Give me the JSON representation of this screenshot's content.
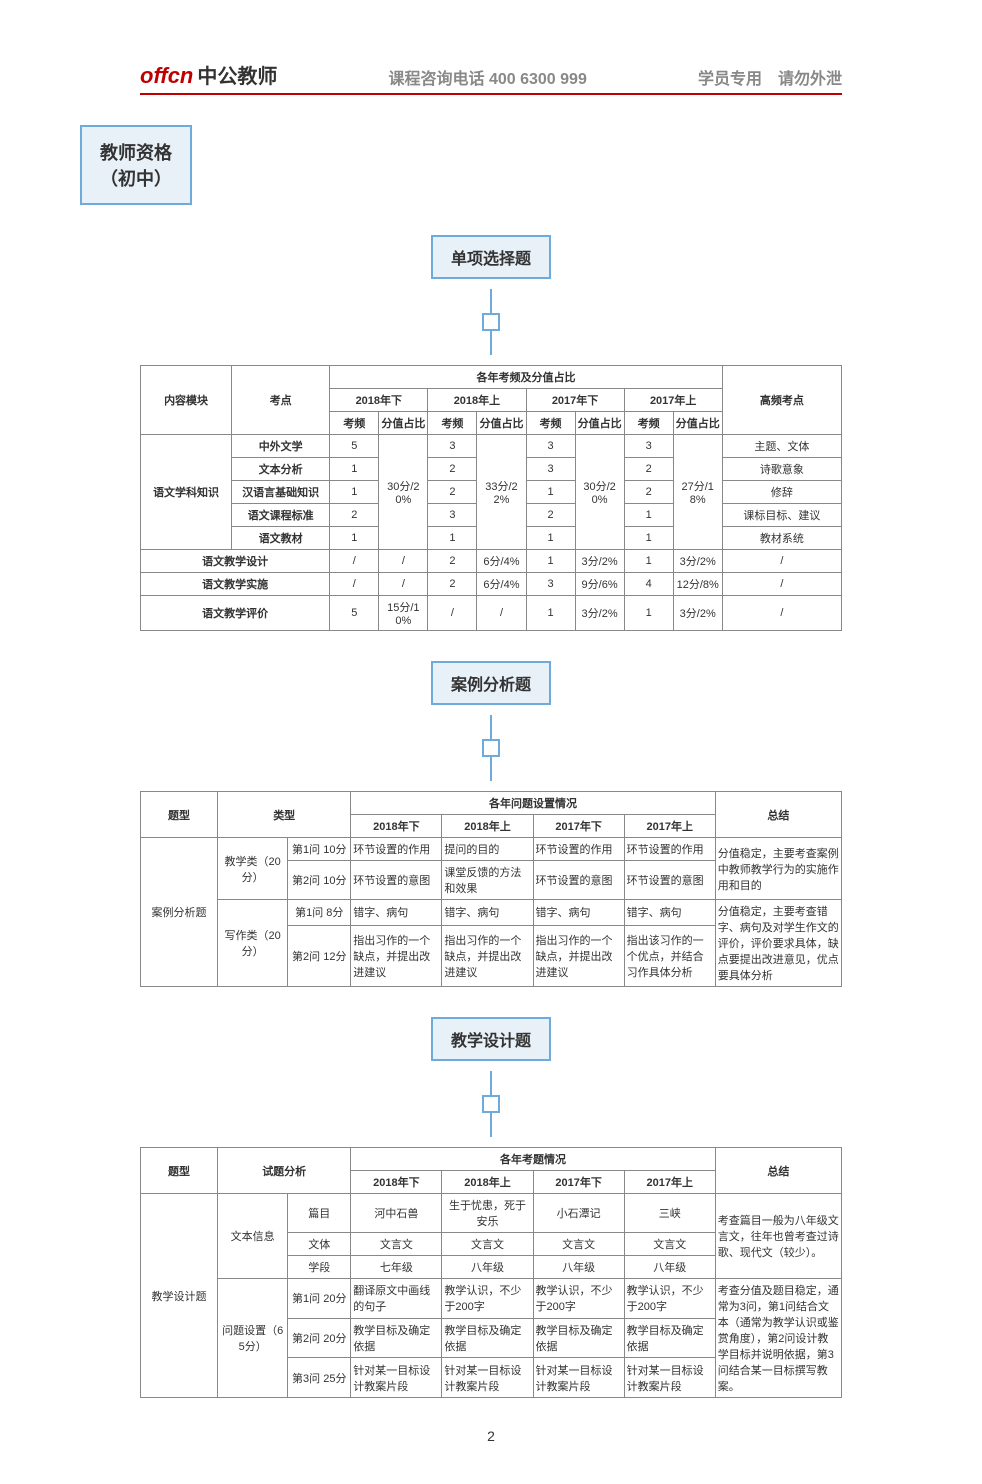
{
  "header": {
    "logo_main": "offcn",
    "logo_sub": "中公教师",
    "center": "课程咨询电话 400 6300 999",
    "right": "学员专用　请勿外泄"
  },
  "root_box": "教师资格\n（初中）",
  "section1": {
    "label": "单项选择题",
    "super_header": "各年考频及分值占比",
    "col_module": "内容模块",
    "col_point": "考点",
    "years": [
      "2018年下",
      "2018年上",
      "2017年下",
      "2017年上"
    ],
    "sub_freq": "考频",
    "sub_ratio": "分值占比",
    "col_hot": "高频考点",
    "group1_name": "语文学科知识",
    "group1_rows": [
      {
        "pt": "中外文学",
        "f": [
          "5",
          "3",
          "3",
          "3"
        ],
        "hot": "主题、文体"
      },
      {
        "pt": "文本分析",
        "f": [
          "1",
          "2",
          "3",
          "2"
        ],
        "hot": "诗歌意象"
      },
      {
        "pt": "汉语言基础知识",
        "f": [
          "1",
          "2",
          "1",
          "2"
        ],
        "hot": "修辞"
      },
      {
        "pt": "语文课程标准",
        "f": [
          "2",
          "3",
          "2",
          "1"
        ],
        "hot": "课标目标、建议"
      },
      {
        "pt": "语文教材",
        "f": [
          "1",
          "1",
          "1",
          "1"
        ],
        "hot": "教材系统"
      }
    ],
    "group1_ratios": [
      "30分/20%",
      "33分/22%",
      "30分/20%",
      "27分/18%"
    ],
    "plain_rows": [
      {
        "pt": "语文教学设计",
        "f": [
          "/",
          "/",
          "2",
          "6分/4%",
          "1",
          "3分/2%",
          "1",
          "3分/2%"
        ],
        "hot": "/"
      },
      {
        "pt": "语文教学实施",
        "f": [
          "/",
          "/",
          "2",
          "6分/4%",
          "3",
          "9分/6%",
          "4",
          "12分/8%"
        ],
        "hot": "/"
      },
      {
        "pt": "语文教学评价",
        "f": [
          "5",
          "15分/10%",
          "/",
          "/",
          "1",
          "3分/2%",
          "1",
          "3分/2%"
        ],
        "hot": "/"
      }
    ]
  },
  "section2": {
    "label": "案例分析题",
    "super_header": "各年问题设置情况",
    "col_type": "题型",
    "col_class": "类型",
    "years": [
      "2018年下",
      "2018年上",
      "2017年下",
      "2017年上"
    ],
    "col_sum": "总结",
    "rowname": "案例分析题",
    "groups": [
      {
        "name": "教学类（20分）",
        "rows": [
          {
            "q": "第1问 10分",
            "c": [
              "环节设置的作用",
              "提问的目的",
              "环节设置的作用",
              "环节设置的作用"
            ]
          },
          {
            "q": "第2问 10分",
            "c": [
              "环节设置的意图",
              "课堂反馈的方法和效果",
              "环节设置的意图",
              "环节设置的意图"
            ]
          }
        ],
        "sum": "分值稳定，主要考查案例中教师教学行为的实施作用和目的"
      },
      {
        "name": "写作类（20分）",
        "rows": [
          {
            "q": "第1问 8分",
            "c": [
              "错字、病句",
              "错字、病句",
              "错字、病句",
              "错字、病句"
            ]
          },
          {
            "q": "第2问 12分",
            "c": [
              "指出习作的一个缺点，并提出改进建议",
              "指出习作的一个缺点，并提出改进建议",
              "指出习作的一个缺点，并提出改进建议",
              "指出该习作的一个优点，并结合习作具体分析"
            ]
          }
        ],
        "sum": "分值稳定，主要考查错字、病句及对学生作文的评价，评价要求具体，缺点要提出改进意见，优点要具体分析"
      }
    ]
  },
  "section3": {
    "label": "教学设计题",
    "super_header": "各年考题情况",
    "col_type": "题型",
    "col_ana": "试题分析",
    "years": [
      "2018年下",
      "2018年上",
      "2017年下",
      "2017年上"
    ],
    "col_sum": "总结",
    "rowname": "教学设计题",
    "text_info_name": "文本信息",
    "text_info_rows": [
      {
        "k": "篇目",
        "c": [
          "河中石兽",
          "生于忧患，死于安乐",
          "小石潭记",
          "三峡"
        ]
      },
      {
        "k": "文体",
        "c": [
          "文言文",
          "文言文",
          "文言文",
          "文言文"
        ]
      },
      {
        "k": "学段",
        "c": [
          "七年级",
          "八年级",
          "八年级",
          "八年级"
        ]
      }
    ],
    "text_info_sum": "考查篇目一般为八年级文言文，往年也曾考查过诗歌、现代文（较少）。",
    "q_set_name": "问题设置（65分）",
    "q_rows": [
      {
        "k": "第1问 20分",
        "c": [
          "翻译原文中画线的句子",
          "教学认识，不少于200字",
          "教学认识，不少于200字",
          "教学认识，不少于200字"
        ]
      },
      {
        "k": "第2问 20分",
        "c": [
          "教学目标及确定依据",
          "教学目标及确定依据",
          "教学目标及确定依据",
          "教学目标及确定依据"
        ]
      },
      {
        "k": "第3问 25分",
        "c": [
          "针对某一目标设计教案片段",
          "针对某一目标设计教案片段",
          "针对某一目标设计教案片段",
          "针对某一目标设计教案片段"
        ]
      }
    ],
    "q_sum": "考查分值及题目稳定，通常为3问，第1问结合文本（通常为教学认识或鉴赏角度），第2问设计教学目标并说明依据，第3问结合某一目标撰写教案。"
  },
  "page_number": "2"
}
